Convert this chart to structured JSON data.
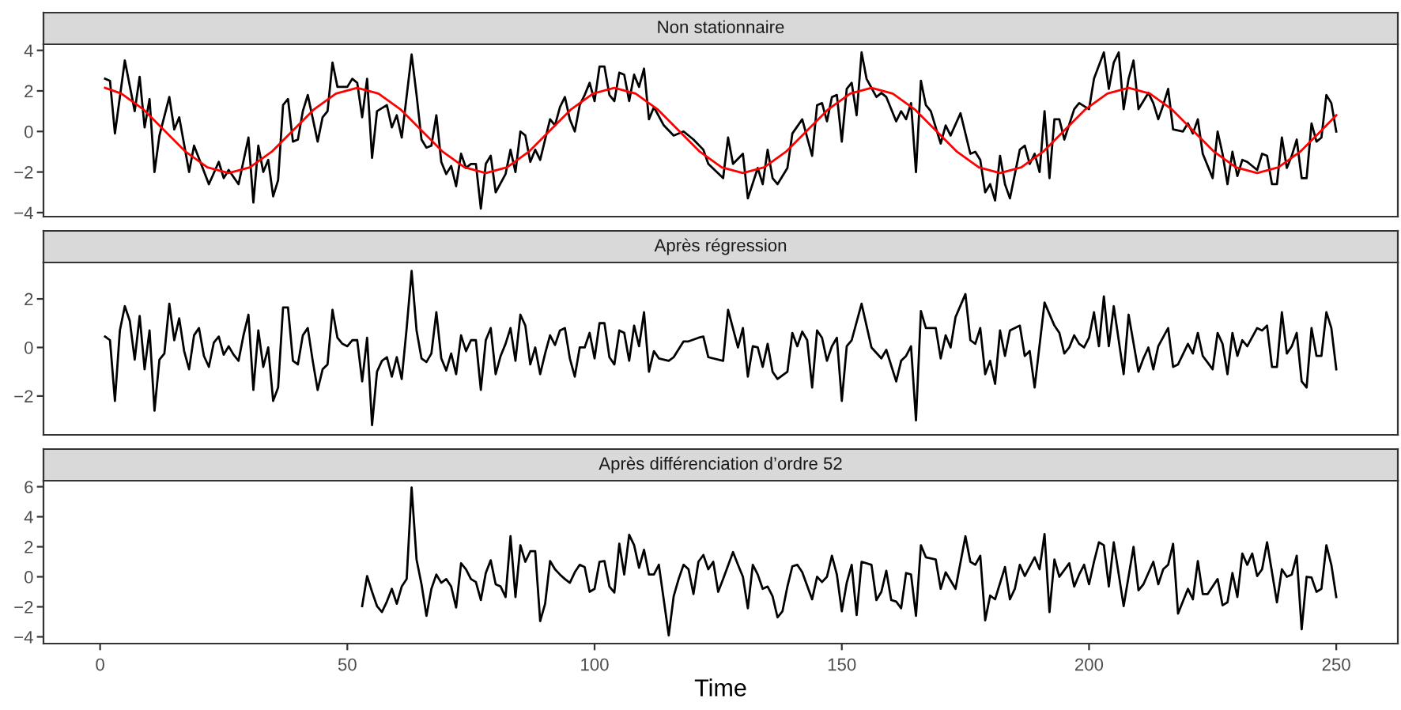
{
  "chart_data": [
    {
      "type": "line",
      "title": "Non stationnaire",
      "xlim": [
        -11.45,
        262.45
      ],
      "xticks": [
        0,
        50,
        100,
        150,
        200,
        250
      ],
      "ylim": [
        -4.2,
        4.3
      ],
      "yticks": [
        -4,
        -2,
        0,
        2,
        4
      ],
      "tick_labels": "y",
      "line_style": "solid",
      "series": [
        {
          "color": "#000000",
          "x": [
            1,
            2,
            3,
            5,
            7,
            8,
            9,
            10,
            11,
            12,
            14,
            15,
            16,
            18,
            19,
            22,
            24,
            25,
            26,
            28,
            30,
            31,
            32,
            33,
            34,
            35,
            36,
            37,
            38,
            39,
            40,
            41,
            42,
            44,
            45,
            46,
            47,
            48,
            50,
            51,
            52,
            53,
            54,
            55,
            56,
            58,
            59,
            60,
            61,
            63,
            64,
            65,
            66,
            67,
            68,
            69,
            70,
            71,
            72,
            73,
            74,
            75,
            76,
            77,
            78,
            79,
            80,
            82,
            83,
            84,
            85,
            86,
            87,
            88,
            89,
            90,
            91,
            92,
            93,
            94,
            95,
            96,
            97,
            98,
            99,
            100,
            101,
            102,
            103,
            104,
            105,
            106,
            107,
            108,
            109,
            110,
            111,
            112,
            114,
            116,
            118,
            120,
            122,
            123,
            126,
            127,
            128,
            130,
            131,
            133,
            134,
            135,
            136,
            137,
            139,
            140,
            142,
            144,
            145,
            146,
            147,
            148,
            149,
            150,
            151,
            152,
            153,
            154,
            155,
            157,
            158,
            159,
            161,
            162,
            163,
            164,
            165,
            166,
            167,
            168,
            170,
            171,
            172,
            174,
            176,
            177,
            178,
            179,
            180,
            181,
            182,
            183,
            184,
            186,
            187,
            188,
            189,
            190,
            191,
            192,
            193,
            194,
            195,
            197,
            198,
            200,
            201,
            203,
            204,
            205,
            206,
            207,
            208,
            209,
            210,
            212,
            213,
            214,
            215,
            216,
            217,
            219,
            220,
            221,
            222,
            223,
            225,
            226,
            227,
            228,
            229,
            230,
            231,
            232,
            234,
            235,
            236,
            237,
            238,
            239,
            240,
            241,
            242,
            243,
            244,
            245,
            246,
            247,
            248,
            249,
            250
          ],
          "values": [
            2.6,
            2.5,
            -0.1,
            3.5,
            1.0,
            2.7,
            0.2,
            1.6,
            -2.0,
            -0.2,
            1.7,
            0.1,
            0.7,
            -2.0,
            -0.7,
            -2.6,
            -1.5,
            -2.3,
            -1.9,
            -2.6,
            -0.3,
            -3.5,
            -0.7,
            -2.0,
            -1.4,
            -3.2,
            -2.4,
            1.3,
            1.6,
            -0.5,
            -0.4,
            1.0,
            1.8,
            -0.5,
            0.7,
            1.0,
            3.4,
            2.2,
            2.2,
            2.6,
            2.4,
            0.7,
            2.6,
            -1.3,
            1.0,
            1.3,
            0.2,
            0.8,
            -0.3,
            3.8,
            1.8,
            -0.4,
            -0.8,
            -0.7,
            0.8,
            -1.5,
            -2.1,
            -1.7,
            -2.7,
            -1.1,
            -1.8,
            -1.6,
            -1.6,
            -3.8,
            -1.6,
            -1.2,
            -3.0,
            -2.1,
            -0.9,
            -2.0,
            0,
            -0.2,
            -1.5,
            -0.9,
            -1.4,
            -0.4,
            0.6,
            0.3,
            1.2,
            1.7,
            0.6,
            0,
            1.3,
            1.8,
            2.4,
            1.5,
            3.2,
            3.2,
            1.8,
            1.5,
            2.9,
            2.8,
            1.5,
            2.8,
            2.2,
            3.1,
            0.6,
            1.2,
            0.3,
            -0.2,
            0,
            -0.4,
            -0.9,
            -1.6,
            -2.3,
            -0.3,
            -1.6,
            -1.1,
            -3.3,
            -1.8,
            -2.6,
            -0.9,
            -2.3,
            -2.6,
            -1.8,
            -0.1,
            0.6,
            -1.2,
            1.3,
            1.4,
            0.5,
            1.7,
            1.8,
            -0.5,
            2.1,
            2.4,
            0.8,
            3.9,
            2.6,
            1.7,
            1.9,
            1.7,
            0.5,
            1.0,
            0.6,
            1.4,
            -2.0,
            2.5,
            1.3,
            1.0,
            -0.6,
            0.3,
            -0.2,
            0.9,
            -1.1,
            -1.0,
            -1.4,
            -3.0,
            -2.6,
            -3.4,
            -1.2,
            -2.6,
            -3.3,
            -0.9,
            -0.7,
            -1.6,
            -1.1,
            -2.0,
            1.0,
            -2.3,
            0.6,
            0.6,
            -0.4,
            1.1,
            1.4,
            1.1,
            2.6,
            3.9,
            2.1,
            3.4,
            3.9,
            1.1,
            2.6,
            3.5,
            1.1,
            1.9,
            1.4,
            0.6,
            1.3,
            2.1,
            0.1,
            0,
            0.4,
            -0.1,
            0.6,
            -1.1,
            -2.3,
            0,
            -1.1,
            -2.6,
            -1.0,
            -2.2,
            -1.4,
            -1.5,
            -1.9,
            -1.1,
            -1.2,
            -2.6,
            -2.6,
            -0.3,
            -1.8,
            -1.2,
            -0.4,
            -2.3,
            -2.3,
            0.4,
            -0.5,
            -0.3,
            1.8,
            1.4,
            0
          ]
        },
        {
          "color": "#ff0000",
          "x": [
            1,
            4.3,
            8.7,
            13,
            17.3,
            21.7,
            26,
            30.3,
            34.7,
            39,
            43.3,
            47.7,
            52,
            56.3,
            60.7,
            65,
            69.3,
            73.7,
            78,
            82.3,
            86.7,
            91,
            95.3,
            99.7,
            104,
            108.3,
            112.7,
            117,
            121.3,
            125.7,
            130,
            134.3,
            138.7,
            143,
            147.3,
            151.7,
            156,
            160.3,
            164.7,
            169,
            173.3,
            177.7,
            182,
            186.3,
            190.7,
            195,
            199.3,
            203.7,
            208,
            212.3,
            216.7,
            221,
            225.3,
            229.7,
            234,
            238.3,
            242.7,
            247,
            250
          ],
          "values": [
            2.15,
            1.87,
            1.1,
            0.05,
            -1.0,
            -1.77,
            -2.05,
            -1.77,
            -1.0,
            0.05,
            1.1,
            1.87,
            2.15,
            1.87,
            1.1,
            0.05,
            -1.0,
            -1.77,
            -2.05,
            -1.77,
            -1.0,
            0.05,
            1.1,
            1.87,
            2.15,
            1.87,
            1.1,
            0.05,
            -1.0,
            -1.77,
            -2.05,
            -1.77,
            -1.0,
            0.05,
            1.1,
            1.87,
            2.15,
            1.87,
            1.1,
            0.05,
            -1.0,
            -1.77,
            -2.05,
            -1.77,
            -1.0,
            0.05,
            1.1,
            1.87,
            2.15,
            1.87,
            1.1,
            0.05,
            -1.0,
            -1.77,
            -2.05,
            -1.77,
            -1.0,
            0.05,
            0.8
          ]
        }
      ]
    },
    {
      "type": "line",
      "title": "Après régression",
      "xlim": [
        -11.45,
        262.45
      ],
      "xticks": [
        0,
        50,
        100,
        150,
        200,
        250
      ],
      "ylim": [
        -3.6,
        3.5
      ],
      "yticks": [
        -2,
        0,
        2
      ],
      "tick_labels": "y",
      "line_style": "solid",
      "series": [
        {
          "color": "#000000",
          "x": [
            1,
            2,
            3,
            4,
            5,
            6,
            7,
            8,
            9,
            10,
            11,
            12,
            13,
            14,
            15,
            16,
            17,
            18,
            19,
            20,
            21,
            22,
            23,
            24,
            25,
            26,
            27,
            28,
            29,
            30,
            31,
            32,
            33,
            34,
            35,
            36,
            37,
            38,
            39,
            40,
            41,
            42,
            43,
            44,
            45,
            46,
            47,
            48,
            49,
            50,
            51,
            52,
            53,
            54,
            55,
            56,
            57,
            58,
            59,
            60,
            61,
            62,
            63,
            64,
            65,
            66,
            67,
            68,
            69,
            70,
            71,
            72,
            73,
            74,
            75,
            76,
            77,
            78,
            79,
            80,
            81,
            82,
            83,
            84,
            85,
            86,
            87,
            88,
            89,
            90,
            91,
            92,
            93,
            94,
            95,
            96,
            97,
            98,
            99,
            100,
            101,
            102,
            103,
            104,
            105,
            106,
            107,
            108,
            109,
            110,
            111,
            112,
            113,
            115,
            116,
            118,
            119,
            121,
            122,
            123,
            126,
            127,
            129,
            130,
            131,
            132,
            133,
            134,
            135,
            136,
            137,
            139,
            140,
            141,
            142,
            143,
            144,
            145,
            146,
            147,
            148,
            149,
            150,
            151,
            152,
            154,
            155,
            156,
            158,
            159,
            161,
            162,
            163,
            164,
            165,
            166,
            167,
            169,
            170,
            171,
            172,
            173,
            175,
            176,
            177,
            178,
            179,
            180,
            181,
            182,
            183,
            184,
            186,
            187,
            188,
            189,
            191,
            193,
            194,
            195,
            196,
            197,
            198,
            199,
            200,
            201,
            202,
            203,
            204,
            205,
            207,
            208,
            210,
            211,
            212,
            213,
            214,
            216,
            217,
            218,
            220,
            221,
            222,
            223,
            225,
            226,
            227,
            228,
            229,
            230,
            231,
            232,
            234,
            235,
            236,
            237,
            238,
            239,
            240,
            241,
            242,
            243,
            244,
            245,
            246,
            247,
            248,
            249,
            250
          ],
          "values": [
            0.45,
            0.3,
            -2.2,
            0.7,
            1.7,
            1.1,
            -0.5,
            1.3,
            -0.9,
            0.7,
            -2.6,
            -0.5,
            -0.25,
            1.8,
            0.3,
            1.2,
            -0.15,
            -0.9,
            0.5,
            0.8,
            -0.35,
            -0.8,
            0.2,
            0.45,
            -0.3,
            0.05,
            -0.3,
            -0.55,
            0.5,
            1.35,
            -1.75,
            0.7,
            -0.8,
            0,
            -2.2,
            -1.65,
            1.65,
            1.65,
            -0.55,
            -0.7,
            0.5,
            0.8,
            -0.55,
            -1.75,
            -0.9,
            -0.7,
            1.55,
            0.4,
            0.15,
            0.05,
            0.3,
            0.3,
            -1.4,
            0.4,
            -3.2,
            -1.0,
            -0.55,
            -0.4,
            -1.2,
            -0.4,
            -1.3,
            0.8,
            3.15,
            0.7,
            -0.45,
            -0.6,
            -0.25,
            1.45,
            -0.45,
            -0.95,
            -0.25,
            -1.1,
            0.5,
            -0.15,
            0.3,
            0.3,
            -1.75,
            0.3,
            0.8,
            -1.1,
            -0.35,
            0.15,
            0.8,
            -0.55,
            1.35,
            0.9,
            -0.7,
            0,
            -1.1,
            -0.25,
            0.5,
            0.1,
            0.7,
            0.8,
            -0.45,
            -1.2,
            0,
            0,
            0.6,
            -0.45,
            1.0,
            1.0,
            -0.4,
            -0.7,
            0.7,
            0.6,
            -0.55,
            0.9,
            0.05,
            1.45,
            -1.0,
            -0.15,
            -0.45,
            -0.55,
            -0.4,
            0.25,
            0.25,
            0.4,
            0.45,
            -0.4,
            -0.55,
            1.55,
            0,
            0.8,
            -1.2,
            0.05,
            0,
            -0.8,
            0.15,
            -1.0,
            -1.3,
            -1.0,
            0.6,
            0.05,
            0.65,
            0.3,
            -1.65,
            0.7,
            0.4,
            -0.55,
            0.05,
            0.4,
            -2.2,
            0.05,
            0.3,
            1.8,
            0.9,
            0,
            -0.45,
            -0.1,
            -1.4,
            -0.55,
            -0.35,
            0.05,
            -3.0,
            1.5,
            0.8,
            0.8,
            -0.45,
            0.5,
            0,
            1.25,
            2.2,
            0.3,
            0.15,
            0.8,
            -1.1,
            -0.55,
            -1.5,
            0.7,
            -0.35,
            0.7,
            0.9,
            -0.35,
            -0.15,
            -1.65,
            1.85,
            0.9,
            0.6,
            -0.25,
            0,
            0.5,
            0.15,
            0,
            0.4,
            1.45,
            0.05,
            2.1,
            0.05,
            1.7,
            -1.1,
            1.35,
            -1.0,
            -0.45,
            0,
            -0.9,
            0.05,
            0.8,
            -0.8,
            -0.7,
            0.15,
            -0.25,
            0.6,
            -0.35,
            -0.9,
            0.6,
            0.15,
            -1.1,
            0.6,
            -0.35,
            0.3,
            0.05,
            0.8,
            0.7,
            0.9,
            -0.8,
            -0.8,
            1.45,
            -0.25,
            0.05,
            0.6,
            -1.4,
            -1.65,
            0.8,
            -0.35,
            -0.35,
            1.45,
            0.8,
            -0.9
          ]
        }
      ]
    },
    {
      "type": "line",
      "title": "Après différenciation d’ordre 52",
      "xlabel": "Time",
      "xlim": [
        -11.45,
        262.45
      ],
      "xticks": [
        0,
        50,
        100,
        150,
        200,
        250
      ],
      "ylim": [
        -4.45,
        6.4
      ],
      "yticks": [
        -4,
        -2,
        0,
        2,
        4,
        6
      ],
      "line_style": "solid",
      "series": [
        {
          "color": "#000000",
          "x": [
            53,
            54,
            55,
            56,
            57,
            58,
            59,
            60,
            61,
            62,
            63,
            64,
            65,
            66,
            67,
            68,
            69,
            70,
            71,
            72,
            73,
            74,
            75,
            76,
            77,
            78,
            79,
            80,
            81,
            82,
            83,
            84,
            85,
            86,
            87,
            88,
            89,
            90,
            91,
            92,
            93,
            94,
            95,
            96,
            97,
            98,
            99,
            100,
            101,
            102,
            103,
            104,
            105,
            106,
            107,
            108,
            109,
            110,
            111,
            112,
            113,
            115,
            116,
            117,
            118,
            119,
            120,
            121,
            122,
            123,
            124,
            125,
            126,
            128,
            129,
            130,
            131,
            132,
            133,
            134,
            135,
            136,
            137,
            138,
            139,
            140,
            141,
            142,
            144,
            145,
            146,
            147,
            148,
            149,
            150,
            151,
            152,
            153,
            154,
            156,
            157,
            158,
            159,
            160,
            161,
            162,
            163,
            164,
            165,
            166,
            167,
            169,
            170,
            171,
            173,
            175,
            176,
            177,
            178,
            179,
            180,
            181,
            183,
            184,
            185,
            186,
            187,
            189,
            190,
            191,
            192,
            193,
            194,
            196,
            197,
            198,
            199,
            200,
            201,
            202,
            203,
            204,
            205,
            207,
            209,
            210,
            211,
            213,
            214,
            215,
            216,
            217,
            218,
            220,
            221,
            222,
            223,
            224,
            226,
            227,
            228,
            229,
            230,
            231,
            232,
            233,
            234,
            235,
            236,
            238,
            239,
            240,
            241,
            242,
            243,
            244,
            245,
            246,
            247,
            248,
            249,
            250
          ],
          "values": [
            -1.95,
            0.05,
            -1.0,
            -1.95,
            -2.35,
            -1.65,
            -0.8,
            -1.8,
            -0.65,
            -0.15,
            5.95,
            1.15,
            -0.5,
            -2.6,
            -0.8,
            0.15,
            -0.4,
            -0.15,
            -0.65,
            -2.05,
            0.9,
            0.5,
            -0.15,
            -0.35,
            -1.55,
            0.25,
            1.1,
            -0.5,
            -0.65,
            -1.35,
            2.7,
            -1.35,
            2.1,
            1.0,
            1.7,
            1.7,
            -2.95,
            -1.8,
            1.05,
            0.5,
            0.15,
            -0.15,
            -0.4,
            0.3,
            0.8,
            0.65,
            -1.0,
            -0.8,
            1.0,
            1.05,
            -0.65,
            -1.05,
            2.2,
            0.15,
            2.8,
            2.1,
            0.6,
            1.8,
            0.15,
            0.15,
            0.8,
            -3.9,
            -1.3,
            -0.15,
            0.8,
            0.5,
            -1.15,
            1.0,
            1.45,
            0.5,
            1.0,
            -1.0,
            -0.15,
            1.65,
            0.8,
            0,
            -2.1,
            0.8,
            0.15,
            -0.8,
            -0.65,
            -1.3,
            -2.7,
            -2.3,
            -0.65,
            0.7,
            0.8,
            0.3,
            -1.5,
            0,
            -0.35,
            0,
            1.4,
            0.15,
            -2.3,
            -0.4,
            0.8,
            -2.55,
            1.0,
            0.8,
            -1.55,
            -1.0,
            0.4,
            -1.55,
            -1.65,
            -2.1,
            0.25,
            0.15,
            -2.6,
            2.1,
            1.3,
            1.15,
            -0.8,
            0.3,
            -0.8,
            2.7,
            1.0,
            0.8,
            1.4,
            -2.9,
            -1.25,
            -1.5,
            0.65,
            -1.5,
            -0.8,
            0.8,
            0.05,
            1.3,
            0.5,
            2.85,
            -2.35,
            1.15,
            0,
            0.9,
            -0.65,
            0.15,
            0.8,
            -0.5,
            1.0,
            2.3,
            2.1,
            -0.65,
            2.3,
            -1.95,
            2.0,
            -0.9,
            -0.5,
            1.0,
            -0.5,
            0.5,
            0.8,
            2.2,
            -2.45,
            -0.8,
            -1.5,
            1.05,
            -1.15,
            -1.15,
            -0.15,
            -1.9,
            -1.7,
            0.25,
            -1.35,
            1.55,
            0.8,
            1.55,
            0.05,
            0.5,
            2.3,
            -1.7,
            0.5,
            0,
            0.15,
            1.4,
            -3.5,
            0,
            -0.05,
            -1.0,
            -0.8,
            2.1,
            0.8,
            -1.35
          ]
        }
      ]
    }
  ]
}
